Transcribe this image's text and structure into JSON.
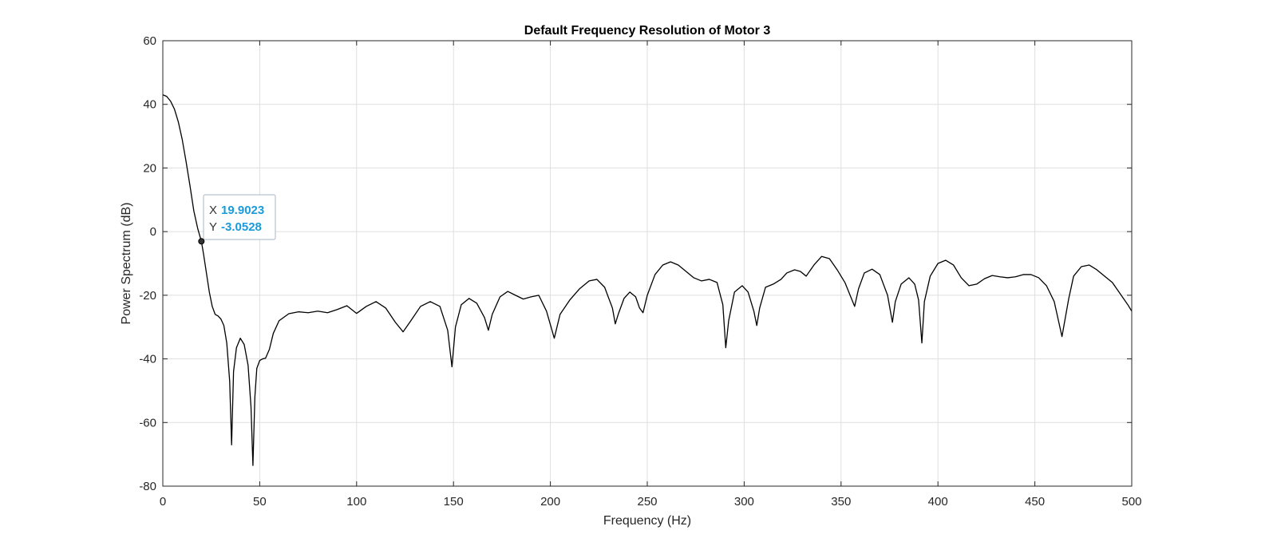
{
  "chart_data": {
    "type": "line",
    "title": "Default Frequency Resolution of Motor 3",
    "xlabel": "Frequency (Hz)",
    "ylabel": "Power Spectrum (dB)",
    "xlim": [
      0,
      500
    ],
    "ylim": [
      -80,
      60
    ],
    "xticks": [
      0,
      50,
      100,
      150,
      200,
      250,
      300,
      350,
      400,
      450,
      500
    ],
    "yticks": [
      -80,
      -60,
      -40,
      -20,
      0,
      20,
      40,
      60
    ],
    "xtick_labels": [
      "0",
      "50",
      "100",
      "150",
      "200",
      "250",
      "300",
      "350",
      "400",
      "450",
      "500"
    ],
    "ytick_labels": [
      "-80",
      "-60",
      "-40",
      "-20",
      "0",
      "20",
      "40",
      "60"
    ],
    "grid": true,
    "line_color": "#000000",
    "series": [
      {
        "x": [
          0,
          2,
          4,
          6,
          8,
          10,
          12,
          14,
          16,
          18,
          19.9,
          21,
          22.5,
          24,
          25.5,
          27,
          28.5,
          30,
          31.5,
          33,
          34.5,
          35.5,
          36.5,
          38,
          40,
          42,
          44,
          45.5,
          46.5,
          47.5,
          48.5,
          50,
          51.5,
          53,
          55,
          57,
          60,
          65,
          70,
          75,
          80,
          85,
          90,
          95,
          100,
          105,
          110,
          115,
          120,
          124,
          128,
          133,
          138,
          143,
          147,
          149.2,
          151,
          154,
          158,
          162,
          166,
          168,
          170,
          174,
          178,
          182,
          186,
          190,
          194,
          198,
          202,
          205,
          210,
          215,
          220,
          224,
          228,
          232,
          233.5,
          235,
          238,
          241,
          244,
          246,
          247.8,
          250,
          254,
          258,
          262,
          266,
          270,
          274,
          278,
          282,
          286,
          289,
          290.5,
          292,
          295,
          299,
          302,
          305,
          306.5,
          308,
          311,
          315,
          319,
          322,
          326,
          329,
          332,
          336,
          340,
          344,
          348,
          352,
          355,
          357,
          359,
          362,
          366,
          370,
          374,
          376.5,
          378,
          381,
          385,
          388,
          390,
          391.7,
          393,
          396,
          400,
          404,
          408,
          412,
          416,
          420,
          424,
          428,
          432,
          436,
          440,
          444,
          448,
          452,
          456,
          460,
          464,
          467.5,
          470,
          474,
          478,
          482,
          486,
          490,
          494,
          498,
          500
        ],
        "y": [
          43,
          42.5,
          41,
          38.5,
          34.5,
          29,
          22,
          14.5,
          6.5,
          1,
          -3.05,
          -7,
          -13,
          -19,
          -23.5,
          -26,
          -26.5,
          -27.5,
          -29.5,
          -35,
          -47,
          -67,
          -44,
          -36.5,
          -33.5,
          -35.5,
          -42,
          -55,
          -73.5,
          -52,
          -43,
          -40.5,
          -40,
          -39.8,
          -37,
          -32,
          -28,
          -25.8,
          -25.2,
          -25.5,
          -25,
          -25.5,
          -24.5,
          -23.3,
          -25.7,
          -23.5,
          -22,
          -24,
          -28.5,
          -31.5,
          -28,
          -23.5,
          -22,
          -23.5,
          -31,
          -42.5,
          -30,
          -23,
          -21,
          -22.5,
          -27,
          -31,
          -26,
          -20.5,
          -18.8,
          -20,
          -21.2,
          -20.5,
          -20,
          -25,
          -33.5,
          -26,
          -21.5,
          -18,
          -15.5,
          -15,
          -17.5,
          -24,
          -29,
          -26,
          -21,
          -19,
          -20.5,
          -24,
          -25.5,
          -20,
          -13.5,
          -10.5,
          -9.5,
          -10.5,
          -12.5,
          -14.5,
          -15.5,
          -15,
          -16,
          -23,
          -36.5,
          -28,
          -19,
          -17,
          -19,
          -25,
          -29.5,
          -24,
          -17.5,
          -16.5,
          -15,
          -13,
          -12,
          -12.5,
          -14,
          -10.5,
          -7.8,
          -8.5,
          -12,
          -16,
          -20.5,
          -23.5,
          -18,
          -13,
          -11.8,
          -13.5,
          -20,
          -28.5,
          -22,
          -16.5,
          -14.5,
          -16.5,
          -21.5,
          -35,
          -22,
          -14,
          -10,
          -9,
          -10.5,
          -14.5,
          -17,
          -16.5,
          -14.8,
          -13.8,
          -14.2,
          -14.5,
          -14.2,
          -13.5,
          -13.5,
          -14.5,
          -17,
          -22,
          -33,
          -21,
          -14,
          -11,
          -10.5,
          -12,
          -14,
          -16,
          -19.5,
          -23,
          -25
        ]
      }
    ],
    "datatip": {
      "x_label": "X",
      "y_label": "Y",
      "x_value": "19.9023",
      "y_value": "-3.0528",
      "x": 19.9023,
      "y": -3.0528,
      "value_color": "#1a9bdc"
    }
  }
}
